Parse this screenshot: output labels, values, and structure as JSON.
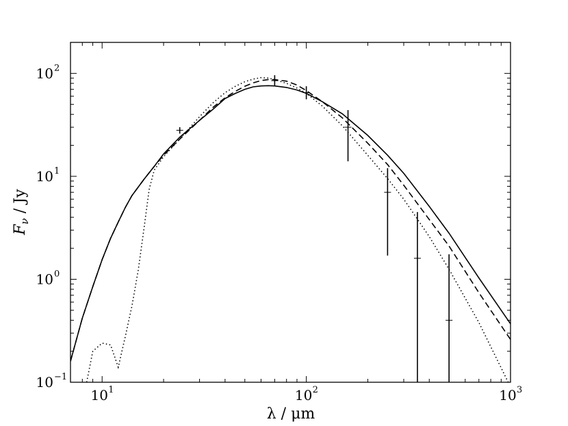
{
  "chart_data": {
    "type": "line",
    "xscale": "log",
    "yscale": "log",
    "xlim": [
      7,
      1000
    ],
    "ylim": [
      0.1,
      200
    ],
    "xlabel": "λ / μm",
    "ylabel": "F_ν / Jy",
    "grid": false,
    "x_ticks": [
      {
        "value": 10,
        "base": "10",
        "exp": "1"
      },
      {
        "value": 100,
        "base": "10",
        "exp": "2"
      },
      {
        "value": 1000,
        "base": "10",
        "exp": "3"
      }
    ],
    "y_ticks": [
      {
        "value": 0.1,
        "base": "10",
        "exp": "−1"
      },
      {
        "value": 1,
        "base": "10",
        "exp": "0"
      },
      {
        "value": 10,
        "base": "10",
        "exp": "1"
      },
      {
        "value": 100,
        "base": "10",
        "exp": "2"
      }
    ],
    "series": [
      {
        "style": "solid",
        "x": [
          7,
          8,
          9,
          10,
          11,
          12,
          13,
          14,
          16,
          18,
          20,
          24,
          30,
          35,
          40,
          45,
          50,
          55,
          60,
          65,
          70,
          80,
          90,
          100,
          120,
          150,
          200,
          250,
          300,
          400,
          500,
          700,
          1000
        ],
        "y": [
          0.16,
          0.42,
          0.85,
          1.55,
          2.5,
          3.6,
          5.0,
          6.5,
          9.3,
          12.5,
          16.5,
          24,
          35,
          45,
          57,
          64,
          70,
          74,
          75.5,
          76,
          75.5,
          73,
          69,
          64,
          53,
          40.5,
          25,
          16,
          10.7,
          5.1,
          2.8,
          1.03,
          0.37
        ]
      },
      {
        "style": "dashed",
        "x": [
          7,
          8,
          9,
          10,
          11,
          12,
          13,
          14,
          16,
          18,
          20,
          24,
          30,
          35,
          40,
          45,
          50,
          55,
          60,
          65,
          70,
          80,
          90,
          100,
          120,
          150,
          200,
          250,
          300,
          400,
          500,
          700,
          1000
        ],
        "y": [
          0.16,
          0.42,
          0.85,
          1.55,
          2.5,
          3.6,
          5.0,
          6.5,
          9.3,
          12.5,
          16,
          23,
          35,
          47,
          58,
          67,
          75,
          81,
          85,
          87,
          87,
          84,
          77,
          68,
          53,
          37,
          21,
          13,
          8.2,
          3.8,
          2.1,
          0.74,
          0.26
        ]
      },
      {
        "style": "dotted",
        "x": [
          8.4,
          9,
          10,
          11,
          12,
          13,
          14,
          15,
          16,
          17,
          18,
          20,
          24,
          30,
          35,
          40,
          45,
          50,
          55,
          60,
          65,
          70,
          80,
          90,
          100,
          120,
          150,
          200,
          250,
          300,
          400,
          500,
          700,
          1000
        ],
        "y": [
          0.1,
          0.2,
          0.24,
          0.23,
          0.14,
          0.28,
          0.55,
          1.2,
          3.0,
          7.5,
          11.5,
          15.5,
          23,
          38,
          52,
          65,
          75,
          83,
          88,
          91,
          90,
          87,
          80,
          72,
          64,
          48,
          31,
          16,
          9.5,
          6.0,
          2.6,
          1.25,
          0.38,
          0.09
        ]
      }
    ],
    "errorbars": [
      {
        "x": 24,
        "y": 28,
        "ylo": 26,
        "yhi": 30
      },
      {
        "x": 70,
        "y": 85,
        "ylo": 76,
        "yhi": 96
      },
      {
        "x": 100,
        "y": 65,
        "ylo": 56,
        "yhi": 75
      },
      {
        "x": 160,
        "y": 30,
        "ylo": 14,
        "yhi": 44
      },
      {
        "x": 250,
        "y": 7,
        "ylo": 1.7,
        "yhi": 12
      },
      {
        "x": 350,
        "y": 1.6,
        "ylo": 0.1,
        "yhi": 4.5
      },
      {
        "x": 500,
        "y": 0.4,
        "ylo": 0.1,
        "yhi": 1.75
      }
    ]
  }
}
